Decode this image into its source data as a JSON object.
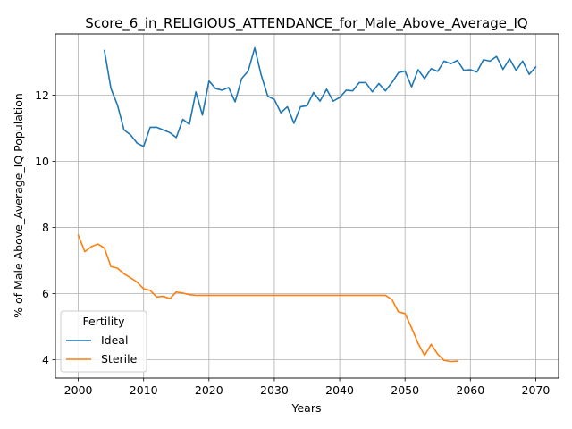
{
  "chart_data": {
    "type": "line",
    "title": "Score_6_in_RELIGIOUS_ATTENDANCE_for_Male_Above_Average_IQ",
    "xlabel": "Years",
    "ylabel": "% of Male Above_Average_IQ Population",
    "xlim": [
      1996.5,
      2073.5
    ],
    "ylim": [
      3.45,
      13.85
    ],
    "xticks": [
      2000,
      2010,
      2020,
      2030,
      2040,
      2050,
      2060,
      2070
    ],
    "yticks": [
      4,
      6,
      8,
      10,
      12
    ],
    "grid": true,
    "legend": {
      "title": "Fertility",
      "placement": "lower-left"
    },
    "series": [
      {
        "name": "Ideal",
        "color": "#1f77b4",
        "x": [
          2004,
          2005,
          2006,
          2007,
          2008,
          2009,
          2010,
          2011,
          2012,
          2013,
          2014,
          2015,
          2016,
          2017,
          2018,
          2019,
          2020,
          2021,
          2022,
          2023,
          2024,
          2025,
          2026,
          2027,
          2028,
          2029,
          2030,
          2031,
          2032,
          2033,
          2034,
          2035,
          2036,
          2037,
          2038,
          2039,
          2040,
          2041,
          2042,
          2043,
          2044,
          2045,
          2046,
          2047,
          2048,
          2049,
          2050,
          2051,
          2052,
          2053,
          2054,
          2055,
          2056,
          2057,
          2058,
          2059,
          2060,
          2061,
          2062,
          2063,
          2064,
          2065,
          2066,
          2067,
          2068,
          2069,
          2070
        ],
        "values": [
          13.35,
          12.2,
          11.7,
          10.95,
          10.8,
          10.55,
          10.45,
          11.03,
          11.03,
          10.95,
          10.87,
          10.72,
          11.27,
          11.12,
          12.1,
          11.4,
          12.43,
          12.2,
          12.15,
          12.23,
          11.8,
          12.5,
          12.73,
          13.43,
          12.6,
          11.97,
          11.87,
          11.47,
          11.65,
          11.15,
          11.65,
          11.68,
          12.08,
          11.82,
          12.18,
          11.82,
          11.93,
          12.15,
          12.13,
          12.38,
          12.38,
          12.1,
          12.35,
          12.13,
          12.38,
          12.68,
          12.73,
          12.25,
          12.77,
          12.5,
          12.8,
          12.72,
          13.03,
          12.95,
          13.05,
          12.75,
          12.77,
          12.7,
          13.07,
          13.03,
          13.17,
          12.78,
          13.1,
          12.75,
          13.03,
          12.63,
          12.85
        ]
      },
      {
        "name": "Sterile",
        "color": "#ff7f0e",
        "x": [
          2000,
          2001,
          2002,
          2003,
          2004,
          2005,
          2006,
          2007,
          2008,
          2009,
          2010,
          2011,
          2012,
          2013,
          2014,
          2015,
          2016,
          2017,
          2018,
          2019,
          2020,
          2021,
          2022,
          2023,
          2024,
          2025,
          2026,
          2027,
          2028,
          2029,
          2030,
          2031,
          2032,
          2033,
          2034,
          2035,
          2036,
          2037,
          2038,
          2039,
          2040,
          2041,
          2042,
          2043,
          2044,
          2045,
          2046,
          2047,
          2048,
          2049,
          2050,
          2051,
          2052,
          2053,
          2054,
          2055,
          2056,
          2057,
          2058
        ],
        "values": [
          7.77,
          7.27,
          7.42,
          7.5,
          7.38,
          6.82,
          6.77,
          6.6,
          6.48,
          6.35,
          6.15,
          6.1,
          5.9,
          5.92,
          5.85,
          6.05,
          6.02,
          5.97,
          5.95,
          5.95,
          5.95,
          5.95,
          5.95,
          5.95,
          5.95,
          5.95,
          5.95,
          5.95,
          5.95,
          5.95,
          5.95,
          5.95,
          5.95,
          5.95,
          5.95,
          5.95,
          5.95,
          5.95,
          5.95,
          5.95,
          5.95,
          5.95,
          5.95,
          5.95,
          5.95,
          5.95,
          5.95,
          5.95,
          5.82,
          5.45,
          5.4,
          4.97,
          4.5,
          4.13,
          4.47,
          4.17,
          3.98,
          3.95,
          3.96
        ]
      }
    ]
  }
}
